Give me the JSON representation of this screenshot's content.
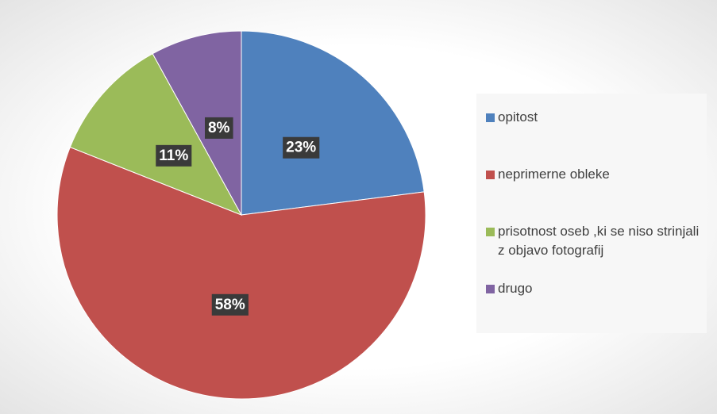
{
  "chart_data": {
    "type": "pie",
    "categories": [
      "opitost",
      "neprimerne obleke",
      "prisotnost oseb ,ki se niso strinjali z objavo fotografij",
      "drugo"
    ],
    "values": [
      23,
      58,
      11,
      8
    ],
    "value_labels": [
      "23%",
      "58%",
      "11%",
      "8%"
    ],
    "colors": [
      "#4f81bd",
      "#c0504d",
      "#9bbb59",
      "#8064a2"
    ],
    "legend": "right"
  }
}
